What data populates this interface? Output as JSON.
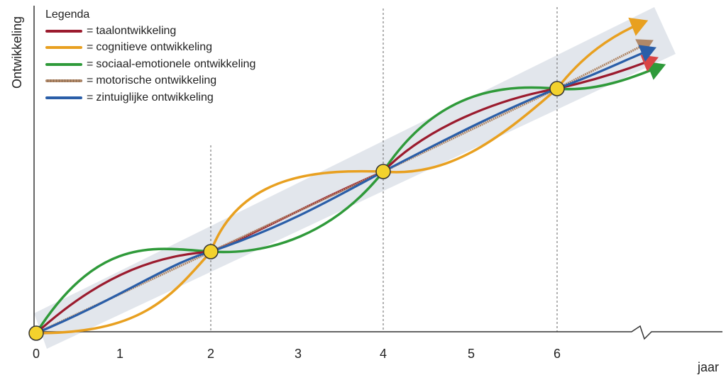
{
  "y_axis_label": "Ontwikkeling",
  "x_axis_unit": "jaar",
  "x_ticks": [
    "0",
    "1",
    "2",
    "3",
    "4",
    "5",
    "6"
  ],
  "legend": {
    "title": "Legenda",
    "equals_sign": "=",
    "items": [
      {
        "key": "taal",
        "label": "taalontwikkeling",
        "color": "#9b1b2e"
      },
      {
        "key": "cognitief",
        "label": "cognitieve ontwikkeling",
        "color": "#e8a020"
      },
      {
        "key": "sociaal",
        "label": "sociaal-emotionele ontwikkeling",
        "color": "#2f9a3a"
      },
      {
        "key": "motorisch",
        "label": "motorische ontwikkeling",
        "color": "#b08868"
      },
      {
        "key": "zintuig",
        "label": "zintuiglijke ontwikkeling",
        "color": "#2a5ea8"
      }
    ]
  },
  "convergence_years": [
    0,
    2,
    4,
    6
  ],
  "band_color": "#dfe3ea",
  "node_color": "#f3d22d"
}
